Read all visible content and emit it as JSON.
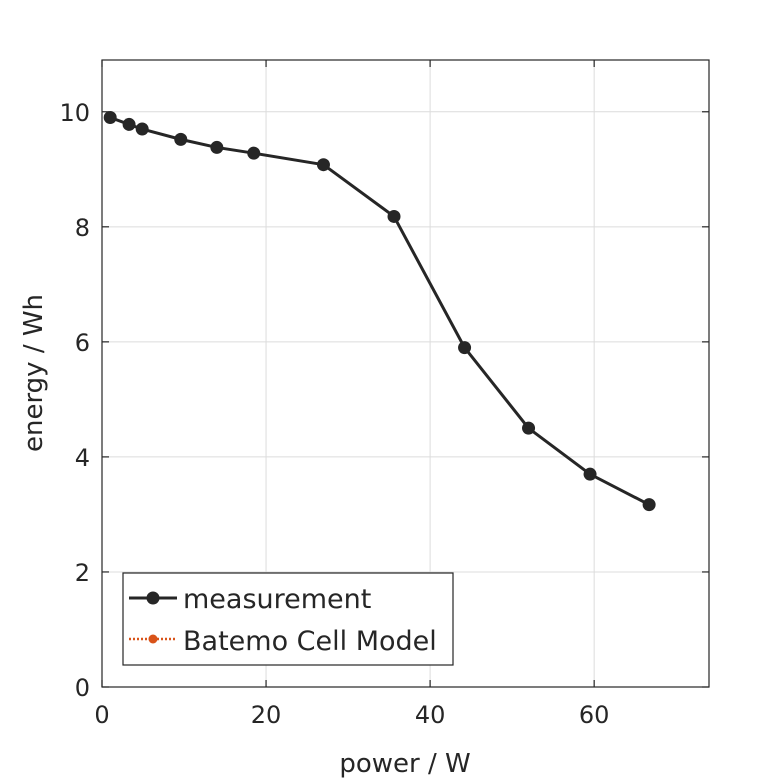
{
  "chart_data": {
    "type": "line",
    "title": "",
    "xlabel": "power / W",
    "ylabel": "energy / Wh",
    "xlim": [
      0,
      74
    ],
    "ylim": [
      0,
      10.9
    ],
    "xticks": [
      0,
      20,
      40,
      60
    ],
    "yticks": [
      0,
      2,
      4,
      6,
      8,
      10
    ],
    "xtick_labels": [
      "0",
      "20",
      "40",
      "60"
    ],
    "ytick_labels": [
      "0",
      "2",
      "4",
      "6",
      "8",
      "10"
    ],
    "grid": true,
    "legend_position": "bottom-left",
    "series": [
      {
        "name": "measurement",
        "color": "#262626",
        "line_style": "solid",
        "marker": "circle",
        "x": [
          1.0,
          3.3,
          4.9,
          9.6,
          14.0,
          18.5,
          27.0,
          35.6,
          44.2,
          52.0,
          59.5,
          66.7
        ],
        "y": [
          9.9,
          9.78,
          9.7,
          9.52,
          9.38,
          9.28,
          9.08,
          8.18,
          5.9,
          4.5,
          3.7,
          3.17
        ]
      },
      {
        "name": "Batemo Cell Model",
        "color": "#d95319",
        "line_style": "dotted",
        "marker": "circle",
        "x": [],
        "y": []
      }
    ]
  }
}
